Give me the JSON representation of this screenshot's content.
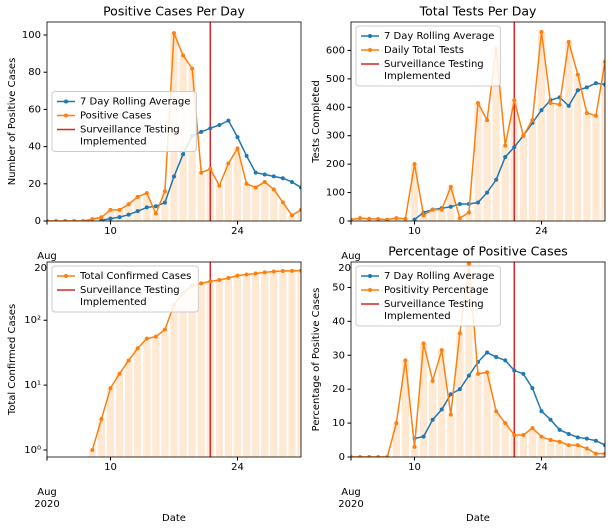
{
  "chart_data": [
    {
      "type": "line",
      "title": "Positive Cases Per Day",
      "y_label": "Number of Positive Cases",
      "x": [
        3,
        4,
        5,
        6,
        7,
        8,
        9,
        10,
        11,
        12,
        13,
        14,
        15,
        16,
        17,
        18,
        19,
        20,
        21,
        22,
        23,
        24,
        25,
        26,
        27,
        28,
        29,
        30,
        31
      ],
      "xlim": [
        3,
        31
      ],
      "xticks": [
        {
          "value": 3,
          "label": "Aug 2020"
        },
        10,
        24
      ],
      "ylim": [
        0,
        107
      ],
      "yticks": [
        0,
        20,
        40,
        60,
        80,
        100
      ],
      "legend": "center left",
      "bar_color": "#ffe9d3",
      "series": [
        {
          "name": "7 Day Rolling Average",
          "color": "#1f77b4",
          "values": [
            null,
            null,
            null,
            null,
            null,
            null,
            0.4,
            1.3,
            2.1,
            3.4,
            5.3,
            7.3,
            7.9,
            9.9,
            23.9,
            35.9,
            45.7,
            47.9,
            49.9,
            51.6,
            54,
            45.1,
            35,
            26,
            25,
            24,
            23,
            21,
            18
          ]
        },
        {
          "name": "Positive Cases",
          "color": "#ff7f0e",
          "bars": true,
          "values": [
            0,
            0,
            0,
            0,
            0,
            1,
            2,
            6,
            6,
            9,
            13,
            15,
            4,
            16,
            101,
            89,
            82,
            26,
            28,
            19,
            31,
            39,
            20,
            18,
            21,
            17,
            10,
            3,
            6
          ]
        }
      ],
      "vline": {
        "x": 21,
        "name": "Surveillance Testing\nImplemented",
        "color": "#d62728"
      }
    },
    {
      "type": "line",
      "title": "Total Tests Per Day",
      "y_label": "Tests Completed",
      "x": [
        3,
        4,
        5,
        6,
        7,
        8,
        9,
        10,
        11,
        12,
        13,
        14,
        15,
        16,
        17,
        18,
        19,
        20,
        21,
        22,
        23,
        24,
        25,
        26,
        27,
        28,
        29,
        30,
        31
      ],
      "xlim": [
        3,
        31
      ],
      "xticks": [
        {
          "value": 3,
          "label": "Aug 2020"
        },
        10,
        24
      ],
      "ylim": [
        0,
        700
      ],
      "yticks": [
        0,
        100,
        200,
        300,
        400,
        500,
        600
      ],
      "legend": "upper left",
      "bar_color": "#ffe9d3",
      "series": [
        {
          "name": "7 Day Rolling Average",
          "color": "#1f77b4",
          "values": [
            null,
            null,
            null,
            null,
            null,
            null,
            null,
            5,
            30,
            40,
            45,
            50,
            60,
            60,
            65,
            100,
            145,
            225,
            260,
            300,
            345,
            390,
            425,
            435,
            405,
            460,
            470,
            485,
            480
          ]
        },
        {
          "name": "Daily Total Tests",
          "color": "#ff7f0e",
          "bars": true,
          "values": [
            5,
            10,
            8,
            7,
            5,
            10,
            8,
            200,
            20,
            40,
            40,
            120,
            10,
            30,
            415,
            355,
            605,
            265,
            425,
            300,
            355,
            665,
            415,
            410,
            630,
            515,
            380,
            370,
            560
          ]
        }
      ],
      "vline": {
        "x": 21,
        "name": "Surveillance Testing\nImplemented",
        "color": "#d62728"
      }
    },
    {
      "type": "line",
      "y_label": "Total Confirmed Cases",
      "x_label": "Date",
      "yscale": "log",
      "x": [
        3,
        4,
        5,
        6,
        7,
        8,
        9,
        10,
        11,
        12,
        13,
        14,
        15,
        16,
        17,
        18,
        19,
        20,
        21,
        22,
        23,
        24,
        25,
        26,
        27,
        28,
        29,
        30,
        31
      ],
      "xlim": [
        3,
        31
      ],
      "xticks": [
        {
          "value": 3,
          "label": "Aug 2020"
        },
        10,
        24
      ],
      "ylim": [
        0.78,
        790
      ],
      "yticks": [
        {
          "value": 1,
          "label": "10⁰"
        },
        {
          "value": 10,
          "label": "10¹"
        },
        {
          "value": 100,
          "label": "10²"
        }
      ],
      "legend": "upper left",
      "bar_color": "#ffe9d3",
      "series": [
        {
          "name": "Total Confirmed Cases",
          "color": "#ff7f0e",
          "bars": true,
          "values": [
            null,
            null,
            null,
            null,
            null,
            1,
            3,
            9,
            15,
            24,
            37,
            52,
            56,
            72,
            173,
            262,
            344,
            370,
            398,
            417,
            448,
            487,
            507,
            525,
            546,
            563,
            573,
            576,
            582
          ]
        }
      ],
      "vline": {
        "x": 21,
        "name": "Surveillance Testing\nImplemented",
        "color": "#d62728"
      }
    },
    {
      "type": "line",
      "title": "Percentage of Positive Cases",
      "y_label": "Percentage of Positive Cases",
      "x_label": "Date",
      "x": [
        3,
        4,
        5,
        6,
        7,
        8,
        9,
        10,
        11,
        12,
        13,
        14,
        15,
        16,
        17,
        18,
        19,
        20,
        21,
        22,
        23,
        24,
        25,
        26,
        27,
        28,
        29,
        30,
        31
      ],
      "xlim": [
        3,
        31
      ],
      "xticks": [
        {
          "value": 3,
          "label": "Aug 2020"
        },
        10,
        24
      ],
      "ylim": [
        0,
        57.5
      ],
      "yticks": [
        0,
        10,
        20,
        30,
        40,
        50
      ],
      "legend": "upper left",
      "bar_color": "#ffe9d3",
      "series": [
        {
          "name": "7 Day Rolling Average",
          "color": "#1f77b4",
          "values": [
            null,
            null,
            null,
            null,
            null,
            null,
            null,
            5.5,
            6,
            11,
            14,
            18.5,
            20,
            24,
            28,
            30.8,
            29.5,
            28.5,
            25.5,
            24.5,
            20.3,
            13.5,
            11,
            8,
            6.8,
            5.8,
            5.4,
            4.8,
            3.5
          ]
        },
        {
          "name": "Positivity Percentage",
          "color": "#ff7f0e",
          "bars": true,
          "values": [
            0,
            0,
            0,
            0,
            0,
            10,
            28.5,
            3,
            33.5,
            22.5,
            31.5,
            12.5,
            36.5,
            57,
            24.5,
            25,
            13.5,
            10,
            6.5,
            6.5,
            8.5,
            6,
            5,
            4.5,
            3.5,
            3.5,
            2.5,
            1,
            1
          ]
        }
      ],
      "vline": {
        "x": 21,
        "name": "Surveillance Testing\nImplemented",
        "color": "#d62728"
      }
    }
  ]
}
